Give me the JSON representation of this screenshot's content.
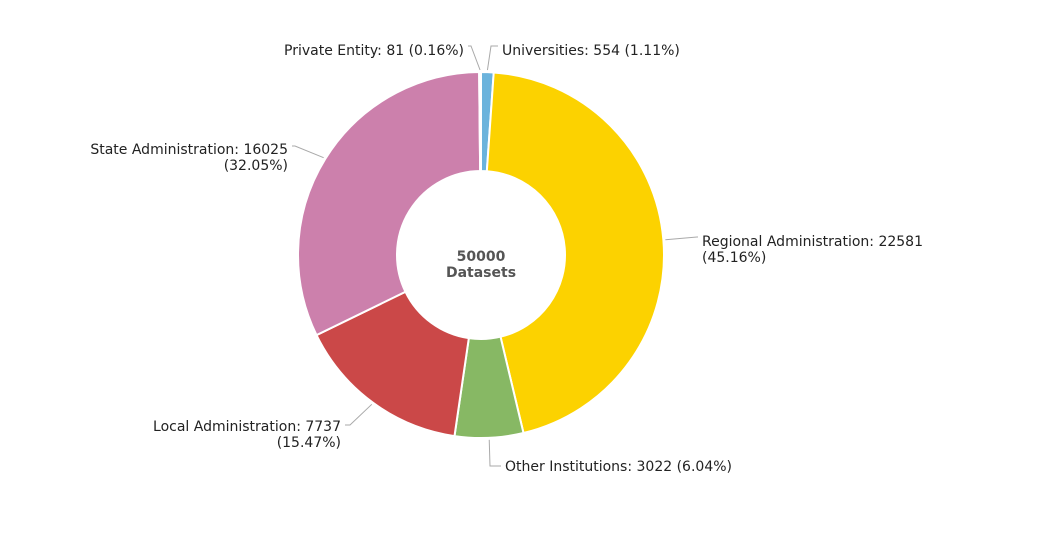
{
  "chart_data": {
    "type": "pie",
    "variant": "donut",
    "center_label": {
      "value": "50000",
      "caption": "Datasets"
    },
    "slices": [
      {
        "name": "Universities",
        "value": 554,
        "percent": "1.11%",
        "color": "#6BB3DC",
        "label_lines": [
          "Universities: 554 (1.11%)"
        ]
      },
      {
        "name": "Regional Administration",
        "value": 22581,
        "percent": "45.16%",
        "color": "#FCD200",
        "label_lines": [
          "Regional Administration: 22581",
          "(45.16%)"
        ]
      },
      {
        "name": "Other Institutions",
        "value": 3022,
        "percent": "6.04%",
        "color": "#87B864",
        "label_lines": [
          "Other Institutions: 3022 (6.04%)"
        ]
      },
      {
        "name": "Local Administration",
        "value": 7737,
        "percent": "15.47%",
        "color": "#CB4848",
        "label_lines": [
          "Local Administration: 7737",
          "(15.47%)"
        ]
      },
      {
        "name": "State Administration",
        "value": 16025,
        "percent": "32.05%",
        "color": "#CC80AC",
        "label_lines": [
          "State Administration: 16025",
          "(32.05%)"
        ]
      },
      {
        "name": "Private Entity",
        "value": 81,
        "percent": "0.16%",
        "color": "#F4F4F4",
        "label_lines": [
          "Private Entity: 81 (0.16%)"
        ]
      }
    ]
  }
}
